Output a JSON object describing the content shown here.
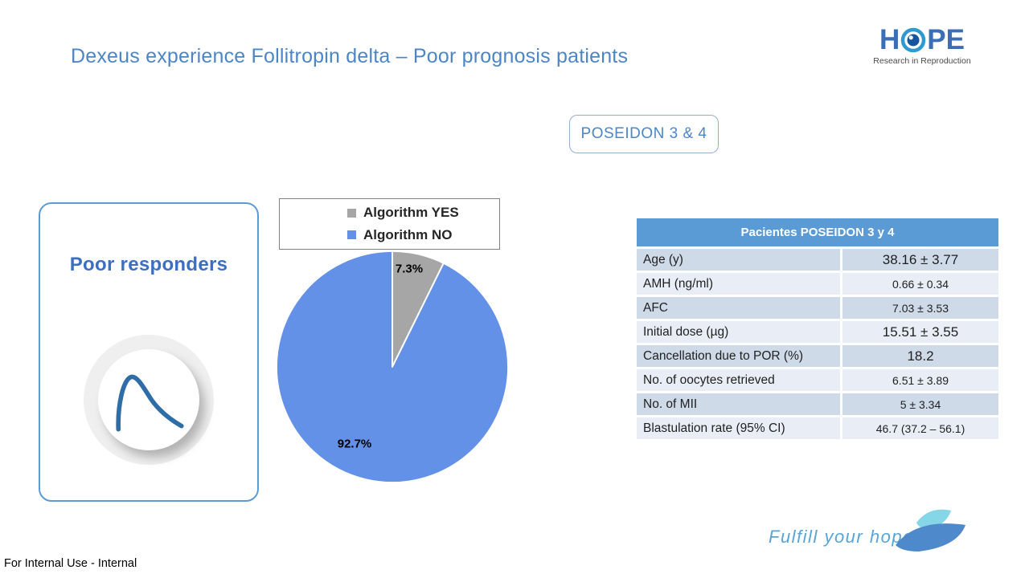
{
  "slide": {
    "title": "Dexeus experience Follitropin delta – Poor prognosis patients",
    "badge": "POSEIDON 3 & 4",
    "footer_note": "For Internal Use - Internal"
  },
  "logo": {
    "word_left": "H",
    "word_right": "PE",
    "tagline": "Research in Reproduction"
  },
  "card": {
    "title": "Poor responders"
  },
  "chart_data": {
    "type": "pie",
    "title": "",
    "series": [
      {
        "name": "Algorithm YES",
        "value": 7.3,
        "label": "7.3%",
        "color": "#A6A6A6"
      },
      {
        "name": "Algorithm NO",
        "value": 92.7,
        "label": "92.7%",
        "color": "#6391E8"
      }
    ],
    "start_angle_deg": 0,
    "legend_position": "top-boxed",
    "slice_border_color": "#ffffff"
  },
  "table": {
    "header": "Pacientes POSEIDON 3 y 4",
    "rows": [
      {
        "label": "Age (y)",
        "value": "38.16 ± 3.77",
        "big": true
      },
      {
        "label": "AMH (ng/ml)",
        "value": "0.66 ± 0.34",
        "big": false
      },
      {
        "label": "AFC",
        "value": "7.03 ± 3.53",
        "big": false
      },
      {
        "label": "Initial dose (µg)",
        "value": "15.51 ± 3.55",
        "big": true
      },
      {
        "label": "Cancellation due to POR (%)",
        "value": "18.2",
        "big": true
      },
      {
        "label": "No. of oocytes retrieved",
        "value": "6.51 ± 3.89",
        "big": false
      },
      {
        "label": "No. of MII",
        "value": "5 ± 3.34",
        "big": false
      },
      {
        "label": "Blastulation rate (95% CI)",
        "value": "46.7 (37.2 – 56.1)",
        "big": false
      }
    ]
  },
  "brand": {
    "tagline": "Fulfill your hope",
    "colors": {
      "accent_blue": "#4C86C7",
      "title_blue": "#4C86C7",
      "card_border": "#5B9BD5",
      "table_header": "#5B9BD5",
      "row_dark": "#CFDAE9",
      "row_light": "#E9EEF6",
      "pie_blue": "#6391E8",
      "pie_gray": "#A6A6A6",
      "leaf_light": "#85D6E6",
      "leaf_dark": "#4D89CB",
      "curve_blue": "#2F6DA8"
    }
  }
}
